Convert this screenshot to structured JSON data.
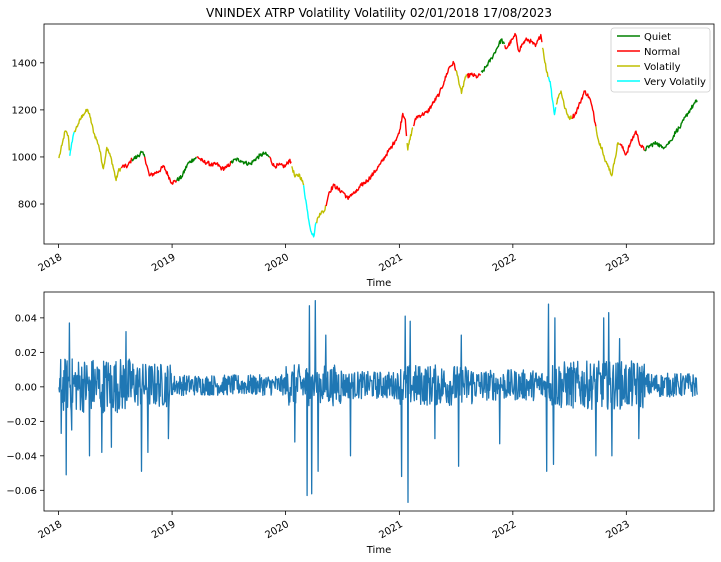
{
  "chart_data": [
    {
      "type": "line",
      "title": "VNINDEX ATRP Volatility Volatility 02/01/2018 17/08/2023",
      "xlabel": "Time",
      "ylabel": "",
      "x_ticks": [
        "2018",
        "2019",
        "2020",
        "2021",
        "2022",
        "2023"
      ],
      "xlim": [
        "2017-11-15",
        "2023-10-10"
      ],
      "y_ticks": [
        800,
        1000,
        1200,
        1400
      ],
      "ylim": [
        630,
        1565
      ],
      "grid": false,
      "legend_position": "top-right",
      "legend": [
        {
          "name": "Quiet",
          "color": "#008000"
        },
        {
          "name": "Normal",
          "color": "#ff0000"
        },
        {
          "name": "Volatily",
          "color": "#bfbf00"
        },
        {
          "name": "Very Volatily",
          "color": "#00ffff"
        }
      ],
      "series_points": [
        [
          "2018-01-02",
          995
        ],
        [
          "2018-01-12",
          1050
        ],
        [
          "2018-01-22",
          1110
        ],
        [
          "2018-02-01",
          1090
        ],
        [
          "2018-02-06",
          1005
        ],
        [
          "2018-02-12",
          1060
        ],
        [
          "2018-02-22",
          1110
        ],
        [
          "2018-03-05",
          1140
        ],
        [
          "2018-03-20",
          1180
        ],
        [
          "2018-04-05",
          1200
        ],
        [
          "2018-04-12",
          1170
        ],
        [
          "2018-04-25",
          1100
        ],
        [
          "2018-05-10",
          1050
        ],
        [
          "2018-05-25",
          950
        ],
        [
          "2018-06-05",
          1040
        ],
        [
          "2018-06-20",
          990
        ],
        [
          "2018-07-05",
          900
        ],
        [
          "2018-07-12",
          940
        ],
        [
          "2018-07-25",
          960
        ],
        [
          "2018-08-10",
          960
        ],
        [
          "2018-08-25",
          990
        ],
        [
          "2018-09-10",
          1000
        ],
        [
          "2018-09-25",
          1020
        ],
        [
          "2018-10-05",
          1000
        ],
        [
          "2018-10-20",
          920
        ],
        [
          "2018-11-05",
          930
        ],
        [
          "2018-11-20",
          940
        ],
        [
          "2018-12-05",
          960
        ],
        [
          "2018-12-20",
          920
        ],
        [
          "2018-12-31",
          890
        ],
        [
          "2019-01-15",
          900
        ],
        [
          "2019-02-01",
          915
        ],
        [
          "2019-02-20",
          970
        ],
        [
          "2019-03-10",
          990
        ],
        [
          "2019-03-25",
          1000
        ],
        [
          "2019-04-10",
          980
        ],
        [
          "2019-04-25",
          975
        ],
        [
          "2019-05-10",
          965
        ],
        [
          "2019-05-25",
          970
        ],
        [
          "2019-06-10",
          950
        ],
        [
          "2019-06-25",
          955
        ],
        [
          "2019-07-10",
          975
        ],
        [
          "2019-07-25",
          990
        ],
        [
          "2019-08-10",
          985
        ],
        [
          "2019-08-25",
          975
        ],
        [
          "2019-09-10",
          970
        ],
        [
          "2019-09-25",
          990
        ],
        [
          "2019-10-10",
          1005
        ],
        [
          "2019-10-25",
          1015
        ],
        [
          "2019-11-10",
          1000
        ],
        [
          "2019-11-25",
          960
        ],
        [
          "2019-12-10",
          965
        ],
        [
          "2019-12-31",
          960
        ],
        [
          "2020-01-15",
          990
        ],
        [
          "2020-01-31",
          915
        ],
        [
          "2020-02-15",
          925
        ],
        [
          "2020-02-28",
          880
        ],
        [
          "2020-03-10",
          780
        ],
        [
          "2020-03-20",
          700
        ],
        [
          "2020-03-31",
          660
        ],
        [
          "2020-04-08",
          720
        ],
        [
          "2020-04-20",
          760
        ],
        [
          "2020-05-05",
          770
        ],
        [
          "2020-05-20",
          850
        ],
        [
          "2020-06-05",
          880
        ],
        [
          "2020-06-20",
          860
        ],
        [
          "2020-07-05",
          850
        ],
        [
          "2020-07-20",
          820
        ],
        [
          "2020-07-28",
          840
        ],
        [
          "2020-08-15",
          850
        ],
        [
          "2020-09-01",
          880
        ],
        [
          "2020-09-20",
          900
        ],
        [
          "2020-10-10",
          930
        ],
        [
          "2020-11-01",
          970
        ],
        [
          "2020-11-20",
          1010
        ],
        [
          "2020-12-10",
          1050
        ],
        [
          "2020-12-31",
          1100
        ],
        [
          "2021-01-12",
          1185
        ],
        [
          "2021-01-20",
          1160
        ],
        [
          "2021-01-28",
          1030
        ],
        [
          "2021-02-10",
          1110
        ],
        [
          "2021-02-25",
          1170
        ],
        [
          "2021-03-15",
          1180
        ],
        [
          "2021-04-01",
          1190
        ],
        [
          "2021-04-20",
          1230
        ],
        [
          "2021-05-10",
          1270
        ],
        [
          "2021-05-25",
          1320
        ],
        [
          "2021-06-10",
          1380
        ],
        [
          "2021-06-25",
          1400
        ],
        [
          "2021-07-10",
          1330
        ],
        [
          "2021-07-20",
          1270
        ],
        [
          "2021-08-01",
          1340
        ],
        [
          "2021-08-20",
          1350
        ],
        [
          "2021-09-10",
          1340
        ],
        [
          "2021-09-25",
          1360
        ],
        [
          "2021-10-10",
          1390
        ],
        [
          "2021-10-25",
          1420
        ],
        [
          "2021-11-10",
          1460
        ],
        [
          "2021-11-25",
          1500
        ],
        [
          "2021-12-10",
          1460
        ],
        [
          "2021-12-31",
          1500
        ],
        [
          "2022-01-10",
          1520
        ],
        [
          "2022-01-20",
          1450
        ],
        [
          "2022-02-01",
          1480
        ],
        [
          "2022-02-15",
          1500
        ],
        [
          "2022-03-01",
          1490
        ],
        [
          "2022-03-15",
          1470
        ],
        [
          "2022-04-01",
          1520
        ],
        [
          "2022-04-10",
          1440
        ],
        [
          "2022-04-20",
          1360
        ],
        [
          "2022-05-01",
          1320
        ],
        [
          "2022-05-10",
          1230
        ],
        [
          "2022-05-15",
          1180
        ],
        [
          "2022-05-25",
          1250
        ],
        [
          "2022-06-05",
          1280
        ],
        [
          "2022-06-15",
          1220
        ],
        [
          "2022-06-25",
          1180
        ],
        [
          "2022-07-05",
          1165
        ],
        [
          "2022-07-20",
          1180
        ],
        [
          "2022-08-05",
          1230
        ],
        [
          "2022-08-20",
          1280
        ],
        [
          "2022-09-05",
          1250
        ],
        [
          "2022-09-15",
          1200
        ],
        [
          "2022-09-25",
          1130
        ],
        [
          "2022-10-05",
          1060
        ],
        [
          "2022-10-15",
          1040
        ],
        [
          "2022-10-25",
          980
        ],
        [
          "2022-11-05",
          960
        ],
        [
          "2022-11-15",
          920
        ],
        [
          "2022-11-25",
          990
        ],
        [
          "2022-12-05",
          1060
        ],
        [
          "2022-12-15",
          1050
        ],
        [
          "2022-12-31",
          1010
        ],
        [
          "2023-01-15",
          1060
        ],
        [
          "2023-02-01",
          1110
        ],
        [
          "2023-02-15",
          1050
        ],
        [
          "2023-03-01",
          1030
        ],
        [
          "2023-03-20",
          1050
        ],
        [
          "2023-04-10",
          1060
        ],
        [
          "2023-04-25",
          1040
        ],
        [
          "2023-05-10",
          1050
        ],
        [
          "2023-05-25",
          1070
        ],
        [
          "2023-06-10",
          1110
        ],
        [
          "2023-06-25",
          1130
        ],
        [
          "2023-07-10",
          1170
        ],
        [
          "2023-07-25",
          1200
        ],
        [
          "2023-08-10",
          1230
        ],
        [
          "2023-08-17",
          1240
        ]
      ],
      "regime_segments": [
        {
          "start": "2018-01-02",
          "end": "2018-02-05",
          "regime": "Volatily"
        },
        {
          "start": "2018-02-05",
          "end": "2018-02-20",
          "regime": "Very Volatily"
        },
        {
          "start": "2018-02-20",
          "end": "2018-07-20",
          "regime": "Volatily"
        },
        {
          "start": "2018-07-20",
          "end": "2018-08-25",
          "regime": "Normal"
        },
        {
          "start": "2018-08-25",
          "end": "2018-10-05",
          "regime": "Quiet"
        },
        {
          "start": "2018-10-05",
          "end": "2019-01-15",
          "regime": "Normal"
        },
        {
          "start": "2019-01-15",
          "end": "2019-03-20",
          "regime": "Quiet"
        },
        {
          "start": "2019-03-20",
          "end": "2019-07-10",
          "regime": "Normal"
        },
        {
          "start": "2019-07-10",
          "end": "2019-11-10",
          "regime": "Quiet"
        },
        {
          "start": "2019-11-10",
          "end": "2020-01-20",
          "regime": "Normal"
        },
        {
          "start": "2020-01-20",
          "end": "2020-02-28",
          "regime": "Volatily"
        },
        {
          "start": "2020-02-28",
          "end": "2020-04-10",
          "regime": "Very Volatily"
        },
        {
          "start": "2020-04-10",
          "end": "2020-05-10",
          "regime": "Volatily"
        },
        {
          "start": "2020-05-10",
          "end": "2021-01-25",
          "regime": "Normal"
        },
        {
          "start": "2021-01-25",
          "end": "2021-02-15",
          "regime": "Volatily"
        },
        {
          "start": "2021-02-15",
          "end": "2021-07-01",
          "regime": "Normal"
        },
        {
          "start": "2021-07-01",
          "end": "2021-08-05",
          "regime": "Volatily"
        },
        {
          "start": "2021-08-05",
          "end": "2021-09-20",
          "regime": "Normal"
        },
        {
          "start": "2021-09-20",
          "end": "2021-12-05",
          "regime": "Quiet"
        },
        {
          "start": "2021-12-05",
          "end": "2022-04-05",
          "regime": "Normal"
        },
        {
          "start": "2022-04-05",
          "end": "2022-04-25",
          "regime": "Volatily"
        },
        {
          "start": "2022-04-25",
          "end": "2022-05-20",
          "regime": "Very Volatily"
        },
        {
          "start": "2022-05-20",
          "end": "2022-07-10",
          "regime": "Volatily"
        },
        {
          "start": "2022-07-10",
          "end": "2022-09-25",
          "regime": "Normal"
        },
        {
          "start": "2022-09-25",
          "end": "2022-12-10",
          "regime": "Volatily"
        },
        {
          "start": "2022-12-10",
          "end": "2023-03-01",
          "regime": "Normal"
        },
        {
          "start": "2023-03-01",
          "end": "2023-08-17",
          "regime": "Quiet"
        }
      ]
    },
    {
      "type": "line",
      "title": "",
      "xlabel": "Time",
      "ylabel": "",
      "x_ticks": [
        "2018",
        "2019",
        "2020",
        "2021",
        "2022",
        "2023"
      ],
      "xlim": [
        "2017-11-15",
        "2023-10-10"
      ],
      "y_ticks": [
        -0.06,
        -0.04,
        -0.02,
        0.0,
        0.02,
        0.04
      ],
      "y_tick_labels": [
        "−0.06",
        "−0.04",
        "−0.02",
        "0.00",
        "0.02",
        "0.04"
      ],
      "ylim": [
        -0.072,
        0.055
      ],
      "grid": false,
      "series": [
        {
          "color": "#1f77b4",
          "start": "2018-01-02",
          "end": "2023-08-17",
          "trading_days": 1400
        }
      ],
      "spikes": [
        [
          "2018-01-10",
          -0.027
        ],
        [
          "2018-01-25",
          -0.051
        ],
        [
          "2018-02-05",
          0.037
        ],
        [
          "2018-02-12",
          -0.025
        ],
        [
          "2018-04-10",
          -0.04
        ],
        [
          "2018-05-20",
          -0.038
        ],
        [
          "2018-06-20",
          -0.035
        ],
        [
          "2018-08-05",
          0.032
        ],
        [
          "2018-09-25",
          -0.049
        ],
        [
          "2018-10-15",
          -0.038
        ],
        [
          "2018-12-20",
          -0.03
        ],
        [
          "2020-01-31",
          -0.032
        ],
        [
          "2020-03-10",
          -0.063
        ],
        [
          "2020-03-18",
          0.047
        ],
        [
          "2020-03-25",
          -0.062
        ],
        [
          "2020-04-05",
          0.05
        ],
        [
          "2020-04-15",
          -0.049
        ],
        [
          "2020-05-10",
          0.03
        ],
        [
          "2020-07-28",
          -0.04
        ],
        [
          "2021-01-08",
          -0.052
        ],
        [
          "2021-01-20",
          0.041
        ],
        [
          "2021-01-28",
          -0.067
        ],
        [
          "2021-02-05",
          0.038
        ],
        [
          "2021-04-25",
          -0.03
        ],
        [
          "2021-07-10",
          -0.046
        ],
        [
          "2021-07-20",
          0.03
        ],
        [
          "2021-11-20",
          -0.033
        ],
        [
          "2022-04-20",
          -0.049
        ],
        [
          "2022-04-26",
          0.048
        ],
        [
          "2022-05-12",
          -0.045
        ],
        [
          "2022-05-16",
          0.04
        ],
        [
          "2022-09-25",
          -0.04
        ],
        [
          "2022-10-20",
          0.04
        ],
        [
          "2022-11-05",
          0.043
        ],
        [
          "2022-11-15",
          -0.04
        ],
        [
          "2022-12-10",
          0.028
        ],
        [
          "2023-02-10",
          -0.03
        ]
      ]
    }
  ],
  "colors": {
    "quiet": "#008000",
    "normal": "#ff0000",
    "volatily": "#bfbf00",
    "very_volatily": "#00ffff",
    "returns_line": "#1f77b4"
  }
}
